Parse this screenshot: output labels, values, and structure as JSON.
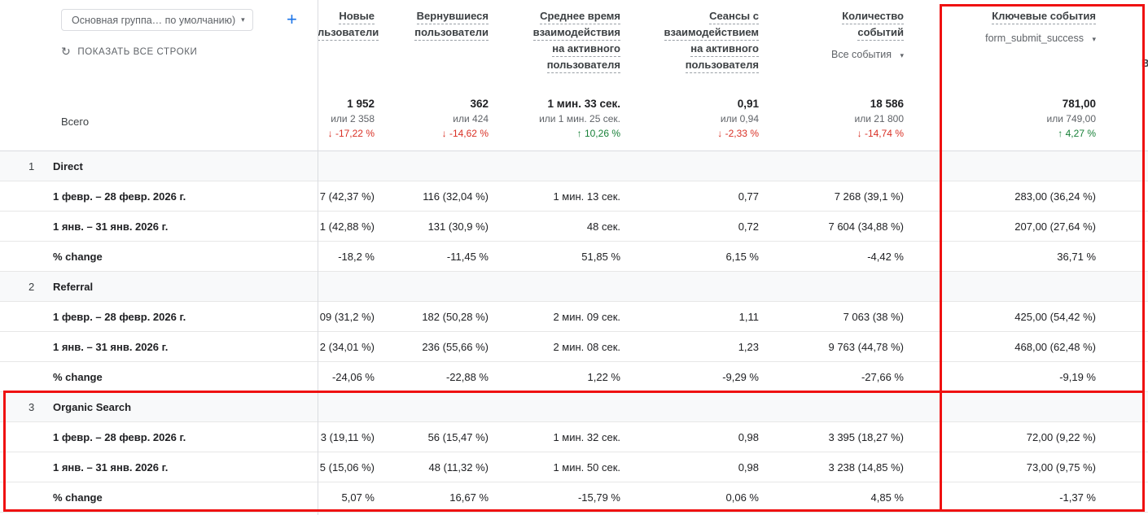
{
  "colors": {
    "highlight": "#ef1111",
    "negative": "#d93025",
    "positive": "#188038",
    "accent": "#1a73e8"
  },
  "controls": {
    "dimension_dropdown_label": "Основная группа… по умолчанию)",
    "caret": "▾",
    "add_label": "+",
    "show_all_rows_icon": "↻",
    "show_all_rows_label": "ПОКАЗАТЬ ВСЕ СТРОКИ"
  },
  "table": {
    "total_label": "Всего",
    "clipped_column_fragment": "В",
    "columns": [
      {
        "lines": [
          "Новые",
          "льзователи"
        ]
      },
      {
        "lines": [
          "Вернувшиеся",
          "пользователи"
        ]
      },
      {
        "lines": [
          "Среднее время",
          "взаимодействия",
          "на активного",
          "пользователя"
        ]
      },
      {
        "lines": [
          "Сеансы с",
          "взаимодействием",
          "на активного",
          "пользователя"
        ]
      },
      {
        "lines": [
          "Количество",
          "событий"
        ],
        "sub": "Все события"
      },
      {
        "lines": [
          "Ключевые события"
        ],
        "sub": "form_submit_success"
      }
    ],
    "totals": {
      "values": [
        "1 952",
        "362",
        "1 мин. 33 сек.",
        "0,91",
        "18 586",
        "781,00"
      ],
      "compare": [
        "или 2 358",
        "или 424",
        "или 1 мин. 25 сек.",
        "или 0,94",
        "или 21 800",
        "или 749,00"
      ],
      "deltas": [
        {
          "text": "↓ -17,22 %",
          "cls": "t-delta down"
        },
        {
          "text": "↓ -14,62 %",
          "cls": "t-delta down"
        },
        {
          "text": "↑ 10,26 %",
          "cls": "t-delta up"
        },
        {
          "text": "↓ -2,33 %",
          "cls": "t-delta down"
        },
        {
          "text": "↓ -14,74 %",
          "cls": "t-delta down"
        },
        {
          "text": "↑ 4,27 %",
          "cls": "t-delta up"
        }
      ]
    },
    "rows": [
      {
        "num": "1",
        "channel": "Direct",
        "p1_label": "1 февр. – 28 февр. 2026 г.",
        "p2_label": "1 янв. – 31 янв. 2026 г.",
        "chg_label": "% change",
        "p1": [
          "7 (42,37 %)",
          "116 (32,04 %)",
          "1 мин. 13 сек.",
          "0,77",
          "7 268 (39,1 %)",
          "283,00 (36,24 %)"
        ],
        "p2": [
          "1 (42,88 %)",
          "131 (30,9 %)",
          "48 сек.",
          "0,72",
          "7 604 (34,88 %)",
          "207,00 (27,64 %)"
        ],
        "chg": [
          "-18,2 %",
          "-11,45 %",
          "51,85 %",
          "6,15 %",
          "-4,42 %",
          "36,71 %"
        ]
      },
      {
        "num": "2",
        "channel": "Referral",
        "p1_label": "1 февр. – 28 февр. 2026 г.",
        "p2_label": "1 янв. – 31 янв. 2026 г.",
        "chg_label": "% change",
        "p1": [
          "09 (31,2 %)",
          "182 (50,28 %)",
          "2 мин. 09 сек.",
          "1,11",
          "7 063 (38 %)",
          "425,00 (54,42 %)"
        ],
        "p2": [
          "2 (34,01 %)",
          "236 (55,66 %)",
          "2 мин. 08 сек.",
          "1,23",
          "9 763 (44,78 %)",
          "468,00 (62,48 %)"
        ],
        "chg": [
          "-24,06 %",
          "-22,88 %",
          "1,22 %",
          "-9,29 %",
          "-27,66 %",
          "-9,19 %"
        ]
      },
      {
        "num": "3",
        "channel": "Organic Search",
        "p1_label": "1 февр. – 28 февр. 2026 г.",
        "p2_label": "1 янв. – 31 янв. 2026 г.",
        "chg_label": "% change",
        "p1": [
          "3 (19,11 %)",
          "56 (15,47 %)",
          "1 мин. 32 сек.",
          "0,98",
          "3 395 (18,27 %)",
          "72,00 (9,22 %)"
        ],
        "p2": [
          "5 (15,06 %)",
          "48 (11,32 %)",
          "1 мин. 50 сек.",
          "0,98",
          "3 238 (14,85 %)",
          "73,00 (9,75 %)"
        ],
        "chg": [
          "5,07 %",
          "16,67 %",
          "-15,79 %",
          "0,06 %",
          "4,85 %",
          "-1,37 %"
        ]
      }
    ]
  }
}
